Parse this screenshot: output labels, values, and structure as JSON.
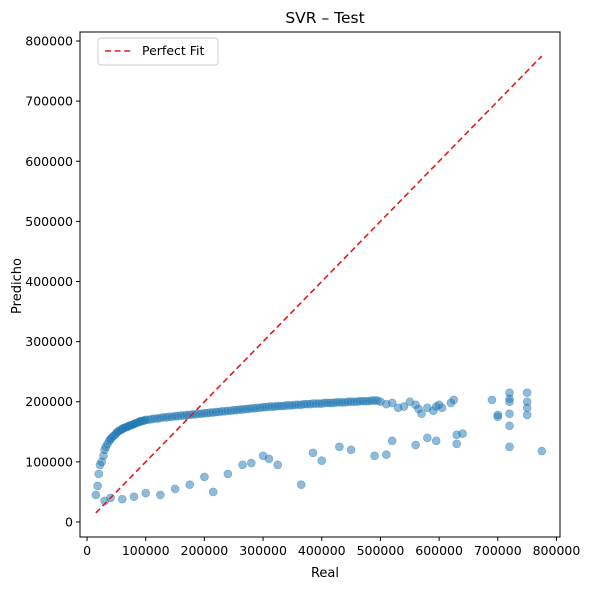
{
  "chart_data": {
    "type": "scatter",
    "title": "SVR – Test",
    "xlabel": "Real",
    "ylabel": "Predicho",
    "xlim": [
      -12000,
      806000
    ],
    "ylim": [
      -25000,
      815000
    ],
    "xticks": [
      0,
      100000,
      200000,
      300000,
      400000,
      500000,
      600000,
      700000,
      800000
    ],
    "yticks": [
      0,
      100000,
      200000,
      300000,
      400000,
      500000,
      600000,
      700000,
      800000
    ],
    "grid": false,
    "legend": {
      "position": "top-left",
      "entries": [
        "Perfect Fit"
      ]
    },
    "colors": {
      "points": "#1f77b4",
      "fit_line": "#e41a1c"
    },
    "reference_line": {
      "name": "Perfect Fit",
      "style": "dashed",
      "x": [
        15000,
        775000
      ],
      "y": [
        15000,
        775000
      ]
    },
    "series": [
      {
        "x": [
          15000,
          18000,
          20000,
          22000,
          25000,
          28000,
          30000,
          32000,
          35000,
          38000,
          40000,
          42000,
          45000,
          48000,
          50000,
          52000,
          55000,
          58000,
          60000,
          62000,
          65000,
          68000,
          70000,
          72000,
          75000,
          78000,
          80000,
          82000,
          85000,
          88000,
          90000,
          92000,
          95000,
          98000,
          100000,
          105000,
          110000,
          115000,
          120000,
          125000,
          130000,
          135000,
          140000,
          145000,
          150000,
          155000,
          160000,
          165000,
          170000,
          175000,
          180000,
          185000,
          190000,
          195000,
          200000,
          205000,
          210000,
          215000,
          220000,
          225000,
          230000,
          235000,
          240000,
          245000,
          250000,
          255000,
          260000,
          265000,
          270000,
          275000,
          280000,
          285000,
          290000,
          295000,
          300000,
          305000,
          310000,
          315000,
          320000,
          325000,
          330000,
          335000,
          340000,
          345000,
          350000,
          355000,
          360000,
          365000,
          370000,
          375000,
          380000,
          385000,
          390000,
          395000,
          400000,
          405000,
          410000,
          415000,
          420000,
          425000,
          430000,
          435000,
          440000,
          445000,
          450000,
          455000,
          460000,
          465000,
          470000,
          475000,
          480000,
          485000,
          490000,
          495000,
          500000,
          510000,
          520000,
          530000,
          540000,
          550000,
          560000,
          565000,
          570000,
          580000,
          590000,
          595000,
          600000,
          605000,
          620000,
          625000,
          630000,
          640000,
          690000,
          700000,
          720000,
          720000,
          720000,
          720000,
          720000,
          750000,
          750000,
          750000,
          750000,
          775000,
          30000,
          40000,
          60000,
          80000,
          100000,
          125000,
          150000,
          175000,
          200000,
          215000,
          240000,
          265000,
          280000,
          300000,
          310000,
          325000,
          365000,
          385000,
          400000,
          430000,
          450000,
          490000,
          510000,
          520000,
          560000,
          580000,
          595000,
          630000,
          700000,
          720000
        ],
        "y": [
          45000,
          60000,
          80000,
          95000,
          100000,
          110000,
          120000,
          125000,
          130000,
          135000,
          138000,
          140000,
          143000,
          145000,
          148000,
          150000,
          152000,
          153000,
          155000,
          156000,
          157000,
          158000,
          159000,
          160000,
          161000,
          162000,
          163000,
          164000,
          165000,
          166000,
          167000,
          168000,
          168000,
          169000,
          170000,
          170000,
          171000,
          172000,
          172000,
          173000,
          174000,
          174000,
          175000,
          175000,
          176000,
          176000,
          177000,
          177000,
          178000,
          178000,
          179000,
          179000,
          180000,
          180000,
          181000,
          181000,
          182000,
          182000,
          183000,
          183000,
          184000,
          184000,
          185000,
          185000,
          186000,
          186000,
          187000,
          187000,
          188000,
          188000,
          189000,
          189000,
          190000,
          190000,
          191000,
          191000,
          192000,
          192000,
          192000,
          193000,
          193000,
          193000,
          194000,
          194000,
          194000,
          195000,
          195000,
          195000,
          196000,
          196000,
          196000,
          197000,
          197000,
          197000,
          197000,
          198000,
          198000,
          198000,
          198000,
          199000,
          199000,
          199000,
          199000,
          200000,
          200000,
          200000,
          200000,
          201000,
          201000,
          201000,
          201000,
          202000,
          202000,
          202000,
          200000,
          196000,
          198000,
          190000,
          192000,
          200000,
          195000,
          188000,
          180000,
          190000,
          185000,
          192000,
          195000,
          190000,
          198000,
          203000,
          145000,
          147000,
          203000,
          178000,
          205000,
          215000,
          200000,
          180000,
          125000,
          215000,
          200000,
          190000,
          178000,
          118000,
          35000,
          40000,
          38000,
          42000,
          48000,
          45000,
          55000,
          62000,
          75000,
          50000,
          80000,
          95000,
          98000,
          110000,
          105000,
          95000,
          62000,
          115000,
          102000,
          125000,
          120000,
          110000,
          112000,
          135000,
          128000,
          140000,
          135000,
          130000,
          175000,
          160000
        ]
      }
    ]
  }
}
